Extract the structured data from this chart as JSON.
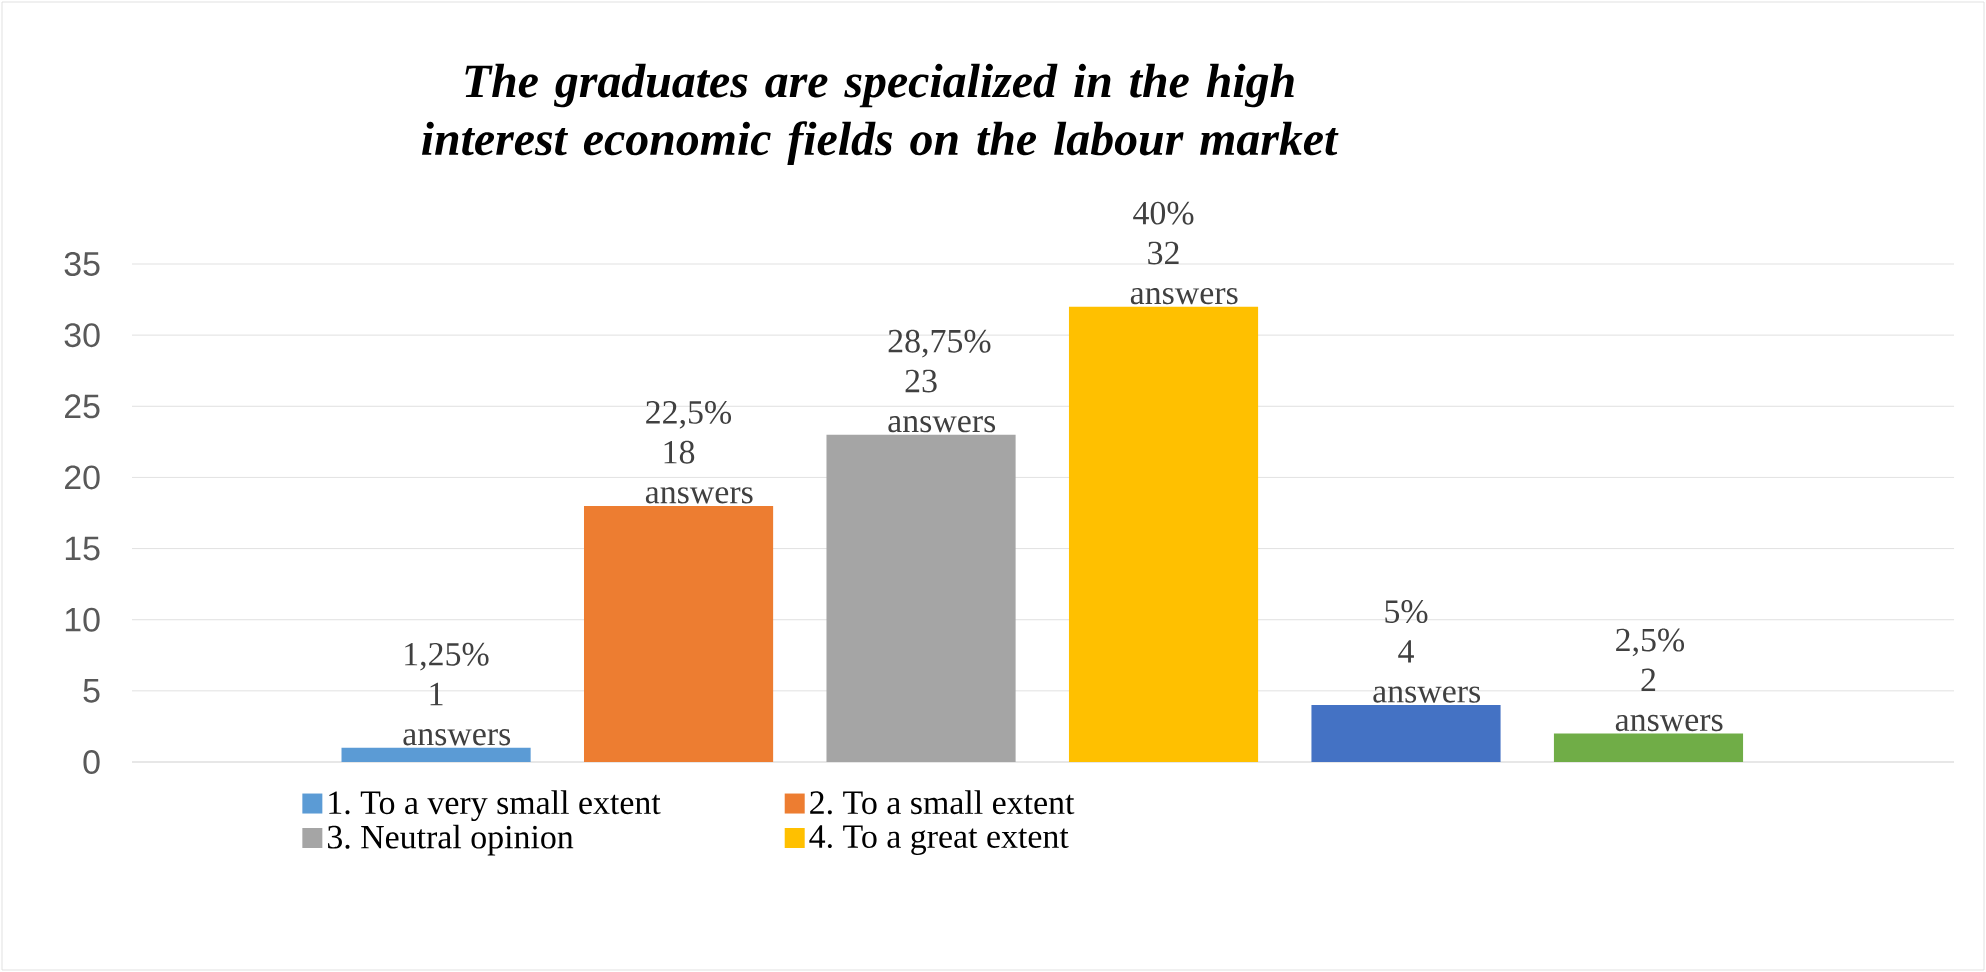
{
  "chart_data": {
    "type": "bar",
    "title": "The graduates are specialized in the high interest economic fields on the labour market",
    "categories": [
      null,
      null,
      null,
      null,
      null,
      null
    ],
    "series": [
      {
        "name": "1. To a very small extent",
        "color": "#5b9bd5",
        "values": [
          1,
          null,
          null,
          null,
          null,
          null
        ],
        "value_labels": [
          "1,25% 1 answers",
          null,
          null,
          null,
          null,
          null
        ]
      },
      {
        "name": "2. To a small extent",
        "color": "#ed7d31",
        "values": [
          null,
          18,
          null,
          null,
          null,
          null
        ],
        "value_labels": [
          null,
          "22,5% 18 answers",
          null,
          null,
          null,
          null
        ]
      },
      {
        "name": "3. Neutral opinion",
        "color": "#a5a5a5",
        "values": [
          null,
          null,
          23,
          null,
          null,
          null
        ],
        "value_labels": [
          null,
          null,
          "28,75% 23 answers",
          null,
          null,
          null
        ]
      },
      {
        "name": "4. To a great extent",
        "color": "#ffc000",
        "values": [
          null,
          null,
          null,
          32,
          null,
          null
        ],
        "value_labels": [
          null,
          null,
          null,
          "40% 32 answers",
          null,
          null
        ]
      },
      {
        "color": "#4472c4",
        "values": [
          null,
          null,
          null,
          null,
          4,
          null
        ],
        "value_labels": [
          null,
          null,
          null,
          null,
          "5% 4 answers",
          null
        ]
      },
      {
        "color": "#70ad47",
        "values": [
          null,
          null,
          null,
          null,
          null,
          2
        ],
        "value_labels": [
          null,
          null,
          null,
          null,
          null,
          "2,5% 2 answers"
        ]
      }
    ],
    "ylim": [
      0,
      35
    ],
    "yticks": [
      0,
      5,
      10,
      15,
      20,
      25,
      30,
      35
    ],
    "grid": "y",
    "legend": "bottom"
  }
}
